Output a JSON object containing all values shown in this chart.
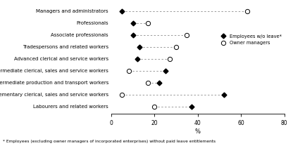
{
  "categories": [
    "Managers and administrators",
    "Professionals",
    "Associate professionals",
    "Tradespersons and related workers",
    "Advanced clerical and service workers",
    "Intermediate clerical, sales and service workers",
    "Intermediate production and transport workers",
    "Elementary clerical, sales and service workers",
    "Labourers and related workers"
  ],
  "employees_wo_leave": [
    5,
    10,
    10,
    13,
    12,
    25,
    22,
    52,
    37
  ],
  "owner_managers": [
    63,
    17,
    35,
    30,
    27,
    8,
    17,
    5,
    20
  ],
  "xlabel": "%",
  "xlim": [
    0,
    80
  ],
  "xticks": [
    0,
    20,
    40,
    60,
    80
  ],
  "legend_employees": "Employees w/o leave*",
  "legend_owners": "Owner managers",
  "footnote": "* Employees (excluding owner managers of incorporated enterprises) without paid leave entitlements",
  "marker_size_filled": 3.5,
  "marker_size_open": 4.5,
  "line_color": "#999999",
  "background_color": "#ffffff"
}
